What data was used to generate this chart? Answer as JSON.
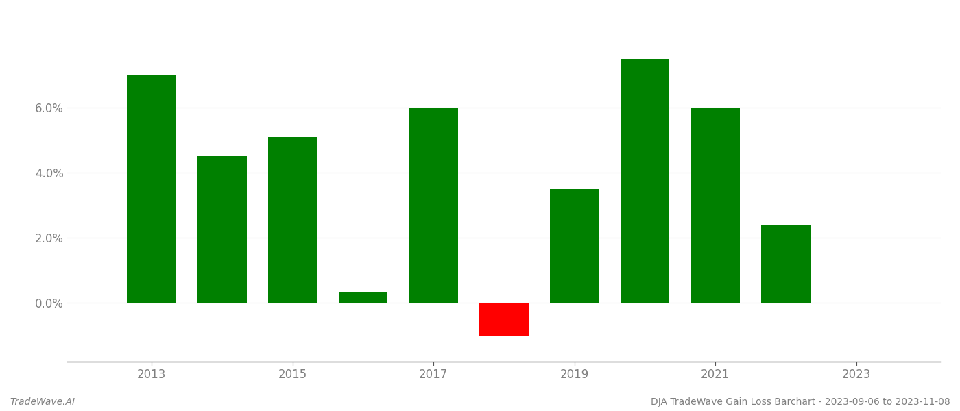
{
  "years": [
    2013,
    2014,
    2015,
    2016,
    2017,
    2018,
    2019,
    2020,
    2021,
    2022
  ],
  "values": [
    0.07,
    0.045,
    0.051,
    0.0035,
    0.06,
    -0.01,
    0.035,
    0.075,
    0.06,
    0.024
  ],
  "colors": [
    "#008000",
    "#008000",
    "#008000",
    "#008000",
    "#008000",
    "#ff0000",
    "#008000",
    "#008000",
    "#008000",
    "#008000"
  ],
  "footer_left": "TradeWave.AI",
  "footer_right": "DJA TradeWave Gain Loss Barchart - 2023-09-06 to 2023-11-08",
  "xtick_years": [
    2013,
    2015,
    2017,
    2019,
    2021,
    2023
  ],
  "ytick_values": [
    0.0,
    0.02,
    0.04,
    0.06
  ],
  "ytick_labels": [
    "0.0%",
    "2.0%",
    "4.0%",
    "6.0%"
  ],
  "bar_width": 0.7,
  "ylim_min": -0.018,
  "ylim_max": 0.088,
  "xlim_min": 2011.8,
  "xlim_max": 2024.2,
  "grid_color": "#cccccc",
  "axis_color": "#555555",
  "text_color": "#808080",
  "footer_fontsize": 10,
  "tick_fontsize": 12
}
